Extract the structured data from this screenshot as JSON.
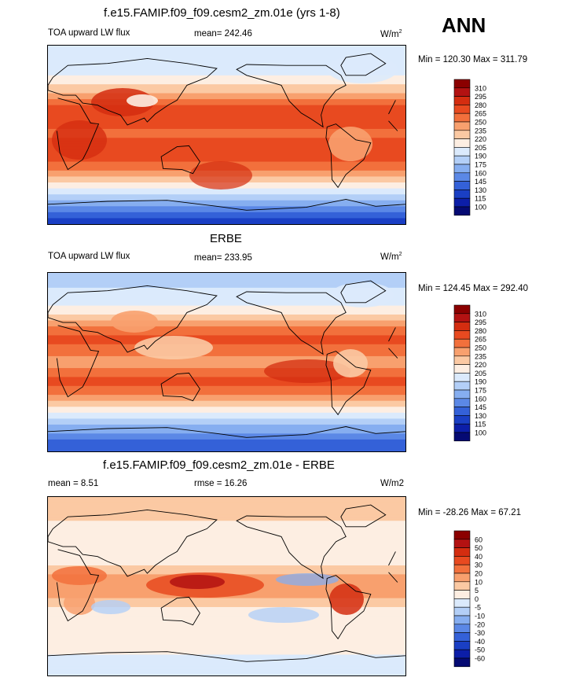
{
  "season": "ANN",
  "units_label": "W/m",
  "units_exp": "2",
  "panels": [
    {
      "id": "model",
      "title": "f.e15.FAMIP.f09_f09.cesm2_zm.01e (yrs 1-8)",
      "left_label": "TOA upward LW flux",
      "center_label": "mean= 242.46",
      "minmax": "Min = 120.30 Max = 311.79",
      "units": "W/m2"
    },
    {
      "id": "obs",
      "title": "ERBE",
      "left_label": "TOA upward LW flux",
      "center_label": "mean= 233.95",
      "minmax": "Min = 124.45 Max = 292.40",
      "units": "W/m2"
    },
    {
      "id": "diff",
      "title": "f.e15.FAMIP.f09_f09.cesm2_zm.01e - ERBE",
      "left_label": "mean =   8.51",
      "center_label": "rmse =  16.26",
      "minmax": "Min = -28.26 Max =  67.21",
      "units": "W/m2"
    }
  ],
  "chart_data": [
    {
      "type": "heatmap",
      "title": "f.e15.FAMIP.f09_f09.cesm2_zm.01e (yrs 1-8)",
      "variable": "TOA upward LW flux",
      "mean": 242.46,
      "min": 120.3,
      "max": 311.79,
      "units": "W/m2",
      "colorbar_levels": [
        "310",
        "295",
        "280",
        "265",
        "250",
        "235",
        "220",
        "205",
        "190",
        "175",
        "160",
        "145",
        "130",
        "115",
        "100"
      ],
      "colorbar_colors": [
        "#8b0000",
        "#b31212",
        "#d42d10",
        "#e84a20",
        "#f2703c",
        "#f8a06e",
        "#fbc9a3",
        "#fdeee2",
        "#dbeafc",
        "#b3cff7",
        "#86aef0",
        "#5b88e6",
        "#3461d8",
        "#1a3fc4",
        "#0c1ea8",
        "#050a73"
      ],
      "lat_profile": [
        {
          "lat": 90,
          "value": 190
        },
        {
          "lat": 60,
          "value": 205
        },
        {
          "lat": 45,
          "value": 230
        },
        {
          "lat": 30,
          "value": 265
        },
        {
          "lat": 20,
          "value": 275
        },
        {
          "lat": 0,
          "value": 262
        },
        {
          "lat": -20,
          "value": 280
        },
        {
          "lat": -35,
          "value": 250
        },
        {
          "lat": -50,
          "value": 215
        },
        {
          "lat": -62,
          "value": 185
        },
        {
          "lat": -75,
          "value": 150
        },
        {
          "lat": -90,
          "value": 120
        }
      ]
    },
    {
      "type": "heatmap",
      "title": "ERBE",
      "variable": "TOA upward LW flux",
      "mean": 233.95,
      "min": 124.45,
      "max": 292.4,
      "units": "W/m2",
      "colorbar_levels": [
        "310",
        "295",
        "280",
        "265",
        "250",
        "235",
        "220",
        "205",
        "190",
        "175",
        "160",
        "145",
        "130",
        "115",
        "100"
      ],
      "colorbar_colors": [
        "#8b0000",
        "#b31212",
        "#d42d10",
        "#e84a20",
        "#f2703c",
        "#f8a06e",
        "#fbc9a3",
        "#fdeee2",
        "#dbeafc",
        "#b3cff7",
        "#86aef0",
        "#5b88e6",
        "#3461d8",
        "#1a3fc4",
        "#0c1ea8",
        "#050a73"
      ],
      "lat_profile": [
        {
          "lat": 90,
          "value": 180
        },
        {
          "lat": 60,
          "value": 200
        },
        {
          "lat": 45,
          "value": 225
        },
        {
          "lat": 30,
          "value": 262
        },
        {
          "lat": 20,
          "value": 270
        },
        {
          "lat": 0,
          "value": 240
        },
        {
          "lat": -20,
          "value": 275
        },
        {
          "lat": -35,
          "value": 245
        },
        {
          "lat": -50,
          "value": 210
        },
        {
          "lat": -62,
          "value": 180
        },
        {
          "lat": -75,
          "value": 150
        },
        {
          "lat": -90,
          "value": 130
        }
      ]
    },
    {
      "type": "heatmap",
      "title": "f.e15.FAMIP.f09_f09.cesm2_zm.01e - ERBE",
      "variable": "TOA upward LW flux difference",
      "mean": 8.51,
      "rmse": 16.26,
      "min": -28.26,
      "max": 67.21,
      "units": "W/m2",
      "colorbar_levels": [
        "60",
        "50",
        "40",
        "30",
        "20",
        "10",
        "5",
        "0",
        "-5",
        "-10",
        "-20",
        "-30",
        "-40",
        "-50",
        "-60"
      ],
      "colorbar_colors": [
        "#8b0000",
        "#b31212",
        "#d42d10",
        "#e84a20",
        "#f2703c",
        "#f8a06e",
        "#fbc9a3",
        "#fdeee2",
        "#dbeafc",
        "#b3cff7",
        "#86aef0",
        "#5b88e6",
        "#3461d8",
        "#1a3fc4",
        "#0c1ea8",
        "#050a73"
      ],
      "lat_profile": [
        {
          "lat": 90,
          "value": 8
        },
        {
          "lat": 45,
          "value": 2
        },
        {
          "lat": 20,
          "value": 5
        },
        {
          "lat": 0,
          "value": 20
        },
        {
          "lat": -20,
          "value": 5
        },
        {
          "lat": -50,
          "value": 3
        },
        {
          "lat": -90,
          "value": -3
        }
      ]
    }
  ]
}
